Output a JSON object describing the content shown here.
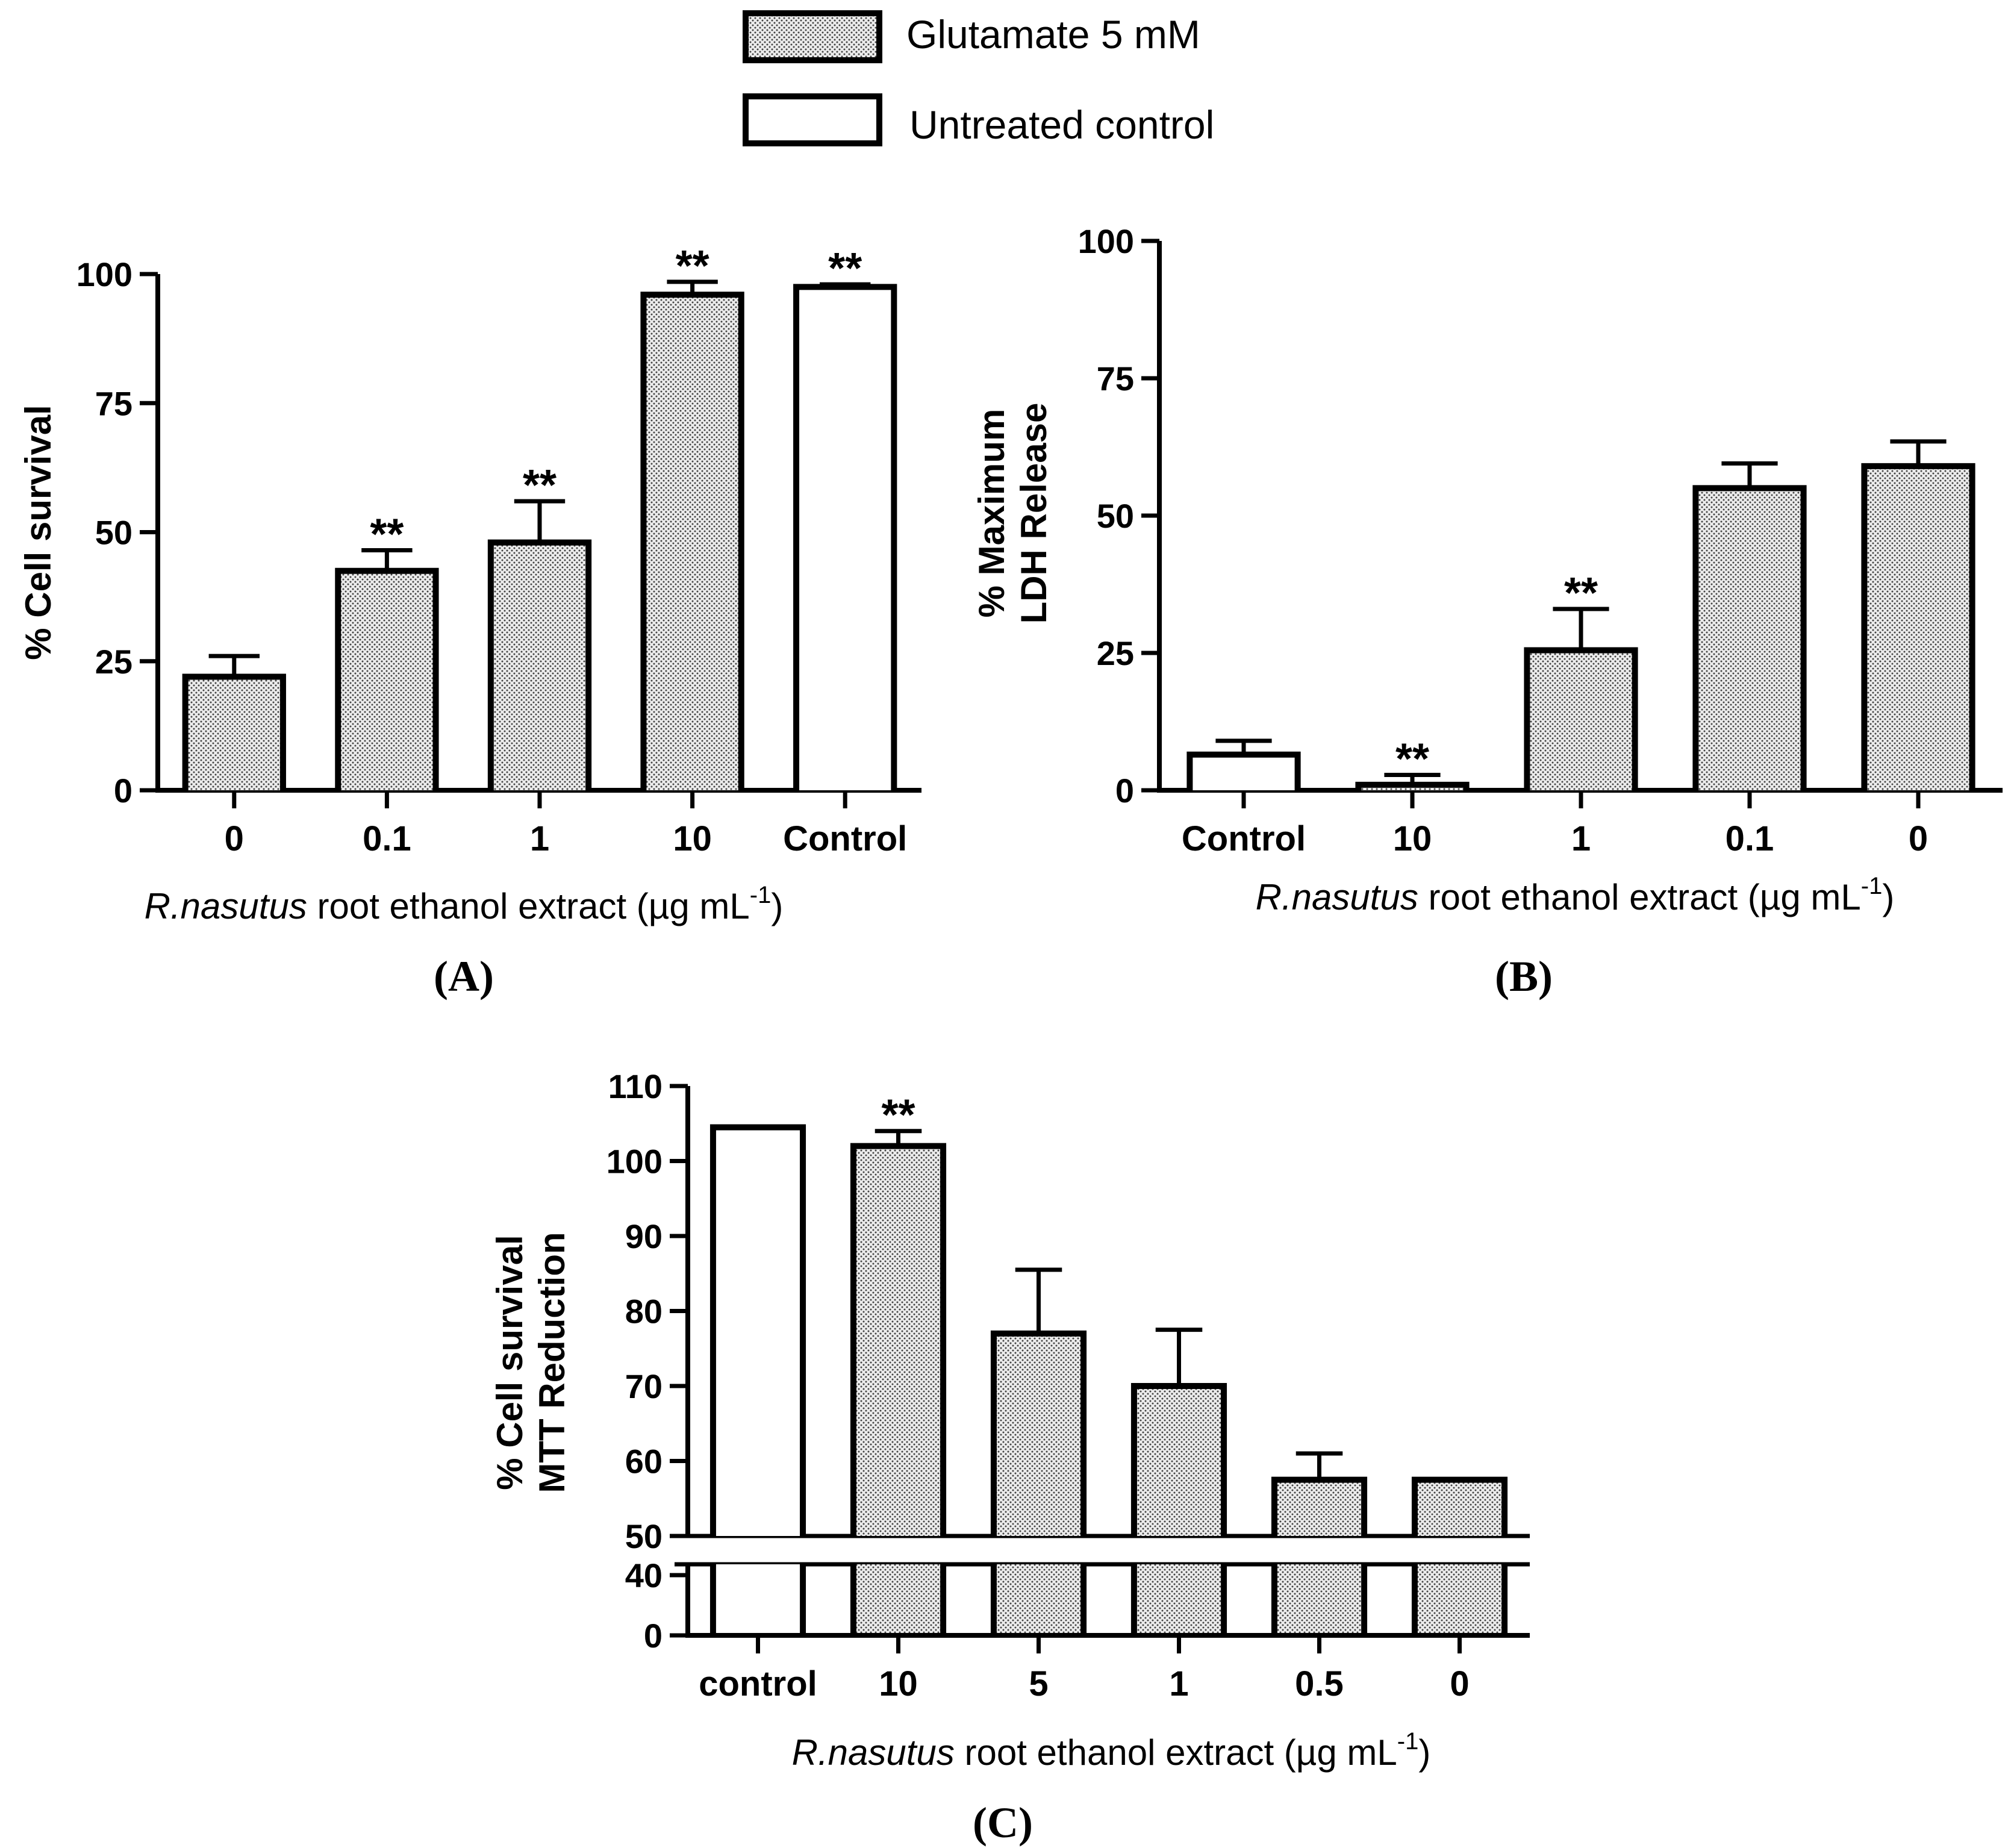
{
  "legend": {
    "items": [
      {
        "label": "Glutamate 5 mM",
        "pattern": "dotted"
      },
      {
        "label": "Untreated control",
        "pattern": "white"
      }
    ]
  },
  "colors": {
    "axis": "#000000",
    "dotted_fill": "#d9d9d9",
    "white_fill": "#ffffff"
  },
  "chart_data": [
    {
      "id": "A",
      "type": "bar",
      "panel_tag": "(A)",
      "ylabel_lines": [
        "% Cell survival"
      ],
      "xlabel_italic": "R.nasutus",
      "xlabel_rest": " root ethanol extract (µg mL",
      "xlabel_sup": "-1",
      "xlabel_end": ")",
      "ylim": [
        0,
        100
      ],
      "yticks": [
        0,
        25,
        50,
        75,
        100
      ],
      "categories": [
        "0",
        "0.1",
        "1",
        "10",
        "Control"
      ],
      "values": [
        22,
        42.5,
        48,
        96,
        97.5
      ],
      "errors": [
        4,
        4,
        8,
        2.5,
        0.5
      ],
      "patterns": [
        "dotted",
        "dotted",
        "dotted",
        "dotted",
        "white"
      ],
      "significance": [
        "",
        "**",
        "**",
        "**",
        "**"
      ]
    },
    {
      "id": "B",
      "type": "bar",
      "panel_tag": "(B)",
      "ylabel_lines": [
        "% Maximum",
        "LDH Release"
      ],
      "xlabel_italic": "R.nasutus",
      "xlabel_rest": " root ethanol extract (µg mL",
      "xlabel_sup": "-1",
      "xlabel_end": ")",
      "ylim": [
        0,
        100
      ],
      "yticks": [
        0,
        25,
        50,
        75,
        100
      ],
      "categories": [
        "Control",
        "10",
        "1",
        "0.1",
        "0"
      ],
      "values": [
        6.5,
        1,
        25.5,
        55,
        59
      ],
      "errors": [
        2.5,
        1.8,
        7.5,
        4.5,
        4.5
      ],
      "patterns": [
        "white",
        "dotted",
        "dotted",
        "dotted",
        "dotted"
      ],
      "significance": [
        "",
        "**",
        "**",
        "",
        ""
      ]
    },
    {
      "id": "C",
      "type": "bar",
      "panel_tag": "(C)",
      "ylabel_lines": [
        "% Cell survival",
        "MTT Reduction"
      ],
      "xlabel_italic": "R.nasutus",
      "xlabel_rest": " root ethanol extract (µg mL",
      "xlabel_sup": "-1",
      "xlabel_end": ")",
      "ylim": [
        0,
        110
      ],
      "axis_break": {
        "lower": [
          0,
          40
        ],
        "upper": [
          50,
          110
        ]
      },
      "yticks_lower": [
        0,
        40
      ],
      "yticks_upper": [
        50,
        60,
        70,
        80,
        90,
        100,
        110
      ],
      "categories": [
        "control",
        "10",
        "5",
        "1",
        "0.5",
        "0"
      ],
      "values": [
        104.5,
        102,
        77,
        70,
        57.5,
        57.5
      ],
      "errors": [
        0,
        2,
        8.5,
        7.5,
        3.5,
        0
      ],
      "patterns": [
        "white",
        "dotted",
        "dotted",
        "dotted",
        "dotted",
        "dotted"
      ],
      "significance": [
        "",
        "**",
        "",
        "",
        "",
        ""
      ]
    }
  ]
}
